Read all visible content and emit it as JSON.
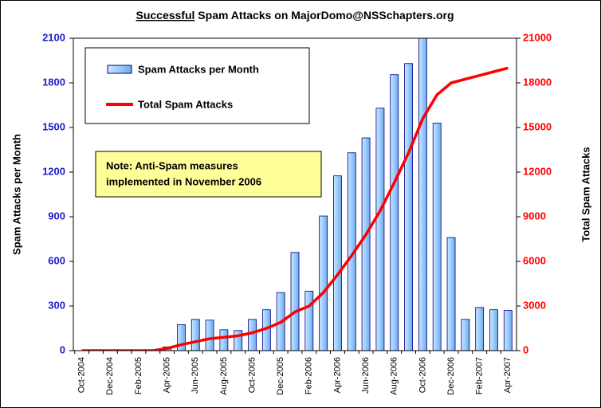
{
  "chart_data": {
    "type": "bar_line",
    "title": {
      "underlined": "Successful",
      "rest": " Spam Attacks on  MajorDomo@NSSchapters.org"
    },
    "ylabel": "Spam Attacks per Month",
    "y2label": "Total Spam Attacks",
    "annotation": [
      "Note:  Anti-Spam measures",
      "implemented in November 2006"
    ],
    "categories": [
      "Oct-2004",
      null,
      "Dec-2004",
      null,
      "Feb-2005",
      null,
      "Apr-2005",
      null,
      "Jun-2005",
      null,
      "Aug-2005",
      null,
      "Oct-2005",
      null,
      "Dec-2005",
      null,
      "Feb-2006",
      null,
      "Apr-2006",
      null,
      "Jun-2006",
      null,
      "Aug-2006",
      null,
      "Oct-2006",
      null,
      "Dec-2006",
      null,
      "Feb-2007",
      null,
      "Apr-2007"
    ],
    "series": [
      {
        "name": "Spam Attacks per Month",
        "color": "#99ccff",
        "values": [
          0,
          0,
          0,
          0,
          0,
          0,
          25,
          175,
          210,
          205,
          140,
          135,
          210,
          275,
          390,
          660,
          400,
          905,
          1175,
          1330,
          1430,
          1630,
          1855,
          1930,
          2150,
          1530,
          760,
          210,
          290,
          275,
          270
        ]
      },
      {
        "name": "Total Spam Attacks",
        "color": "#ff0000",
        "axis": "y2",
        "values": [
          0,
          0,
          0,
          0,
          0,
          0,
          150,
          400,
          600,
          800,
          900,
          1000,
          1200,
          1500,
          1900,
          2600,
          3000,
          3900,
          5100,
          6400,
          7800,
          9400,
          11300,
          13300,
          15600,
          17200,
          18000,
          18250,
          18500,
          18750,
          19000
        ]
      }
    ],
    "ylim": [
      0,
      2100
    ],
    "yticks": [
      0,
      300,
      600,
      900,
      1200,
      1500,
      1800,
      2100
    ],
    "y2lim": [
      0,
      21000
    ],
    "y2ticks": [
      0,
      3000,
      6000,
      9000,
      12000,
      15000,
      18000,
      21000
    ],
    "ytick_color": "#1a1acc",
    "y2tick_color": "#ff0000",
    "legend": "upper left",
    "grid": false
  }
}
